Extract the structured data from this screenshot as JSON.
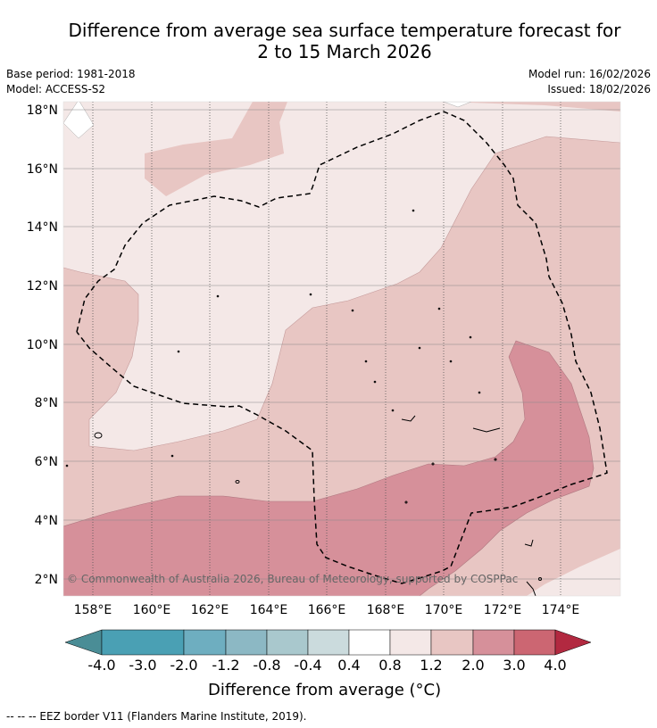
{
  "title": {
    "line1": "Difference from average sea surface temperature forecast for",
    "line2": "2 to 15 March 2026"
  },
  "meta": {
    "base_period": "Base period: 1981-2018",
    "model": "Model: ACCESS-S2",
    "model_run": "Model run: 16/02/2026",
    "issued": "Issued: 18/02/2026"
  },
  "map": {
    "lon_labels": [
      "158°E",
      "160°E",
      "162°E",
      "164°E",
      "166°E",
      "168°E",
      "170°E",
      "172°E",
      "174°E"
    ],
    "lat_labels": [
      "2°N",
      "4°N",
      "6°N",
      "8°N",
      "10°N",
      "12°N",
      "14°N",
      "16°N",
      "18°N"
    ],
    "copyright": "© Commonwealth of Australia 2026, Bureau of Meteorology, supported by COSPPac",
    "lon_range": [
      157,
      176
    ],
    "lat_range": [
      1.5,
      18.2
    ]
  },
  "colorbar": {
    "title": "Difference from average (°C)",
    "tick_labels": [
      "-4.0",
      "-3.0",
      "-2.0",
      "-1.2",
      "-0.8",
      "-0.4",
      "0.4",
      "0.8",
      "1.2",
      "2.0",
      "3.0",
      "4.0"
    ],
    "colors": [
      "#4a8d96",
      "#4aa0b4",
      "#6eaec0",
      "#8cb8c4",
      "#a9c8cd",
      "#cbdbdd",
      "#ffffff",
      "#f4e8e7",
      "#e8c6c3",
      "#d6909a",
      "#cc6672",
      "#c04755",
      "#b22940"
    ]
  },
  "footer": "--  --  -- EEZ border V11 (Flanders Marine Institute, 2019)."
}
